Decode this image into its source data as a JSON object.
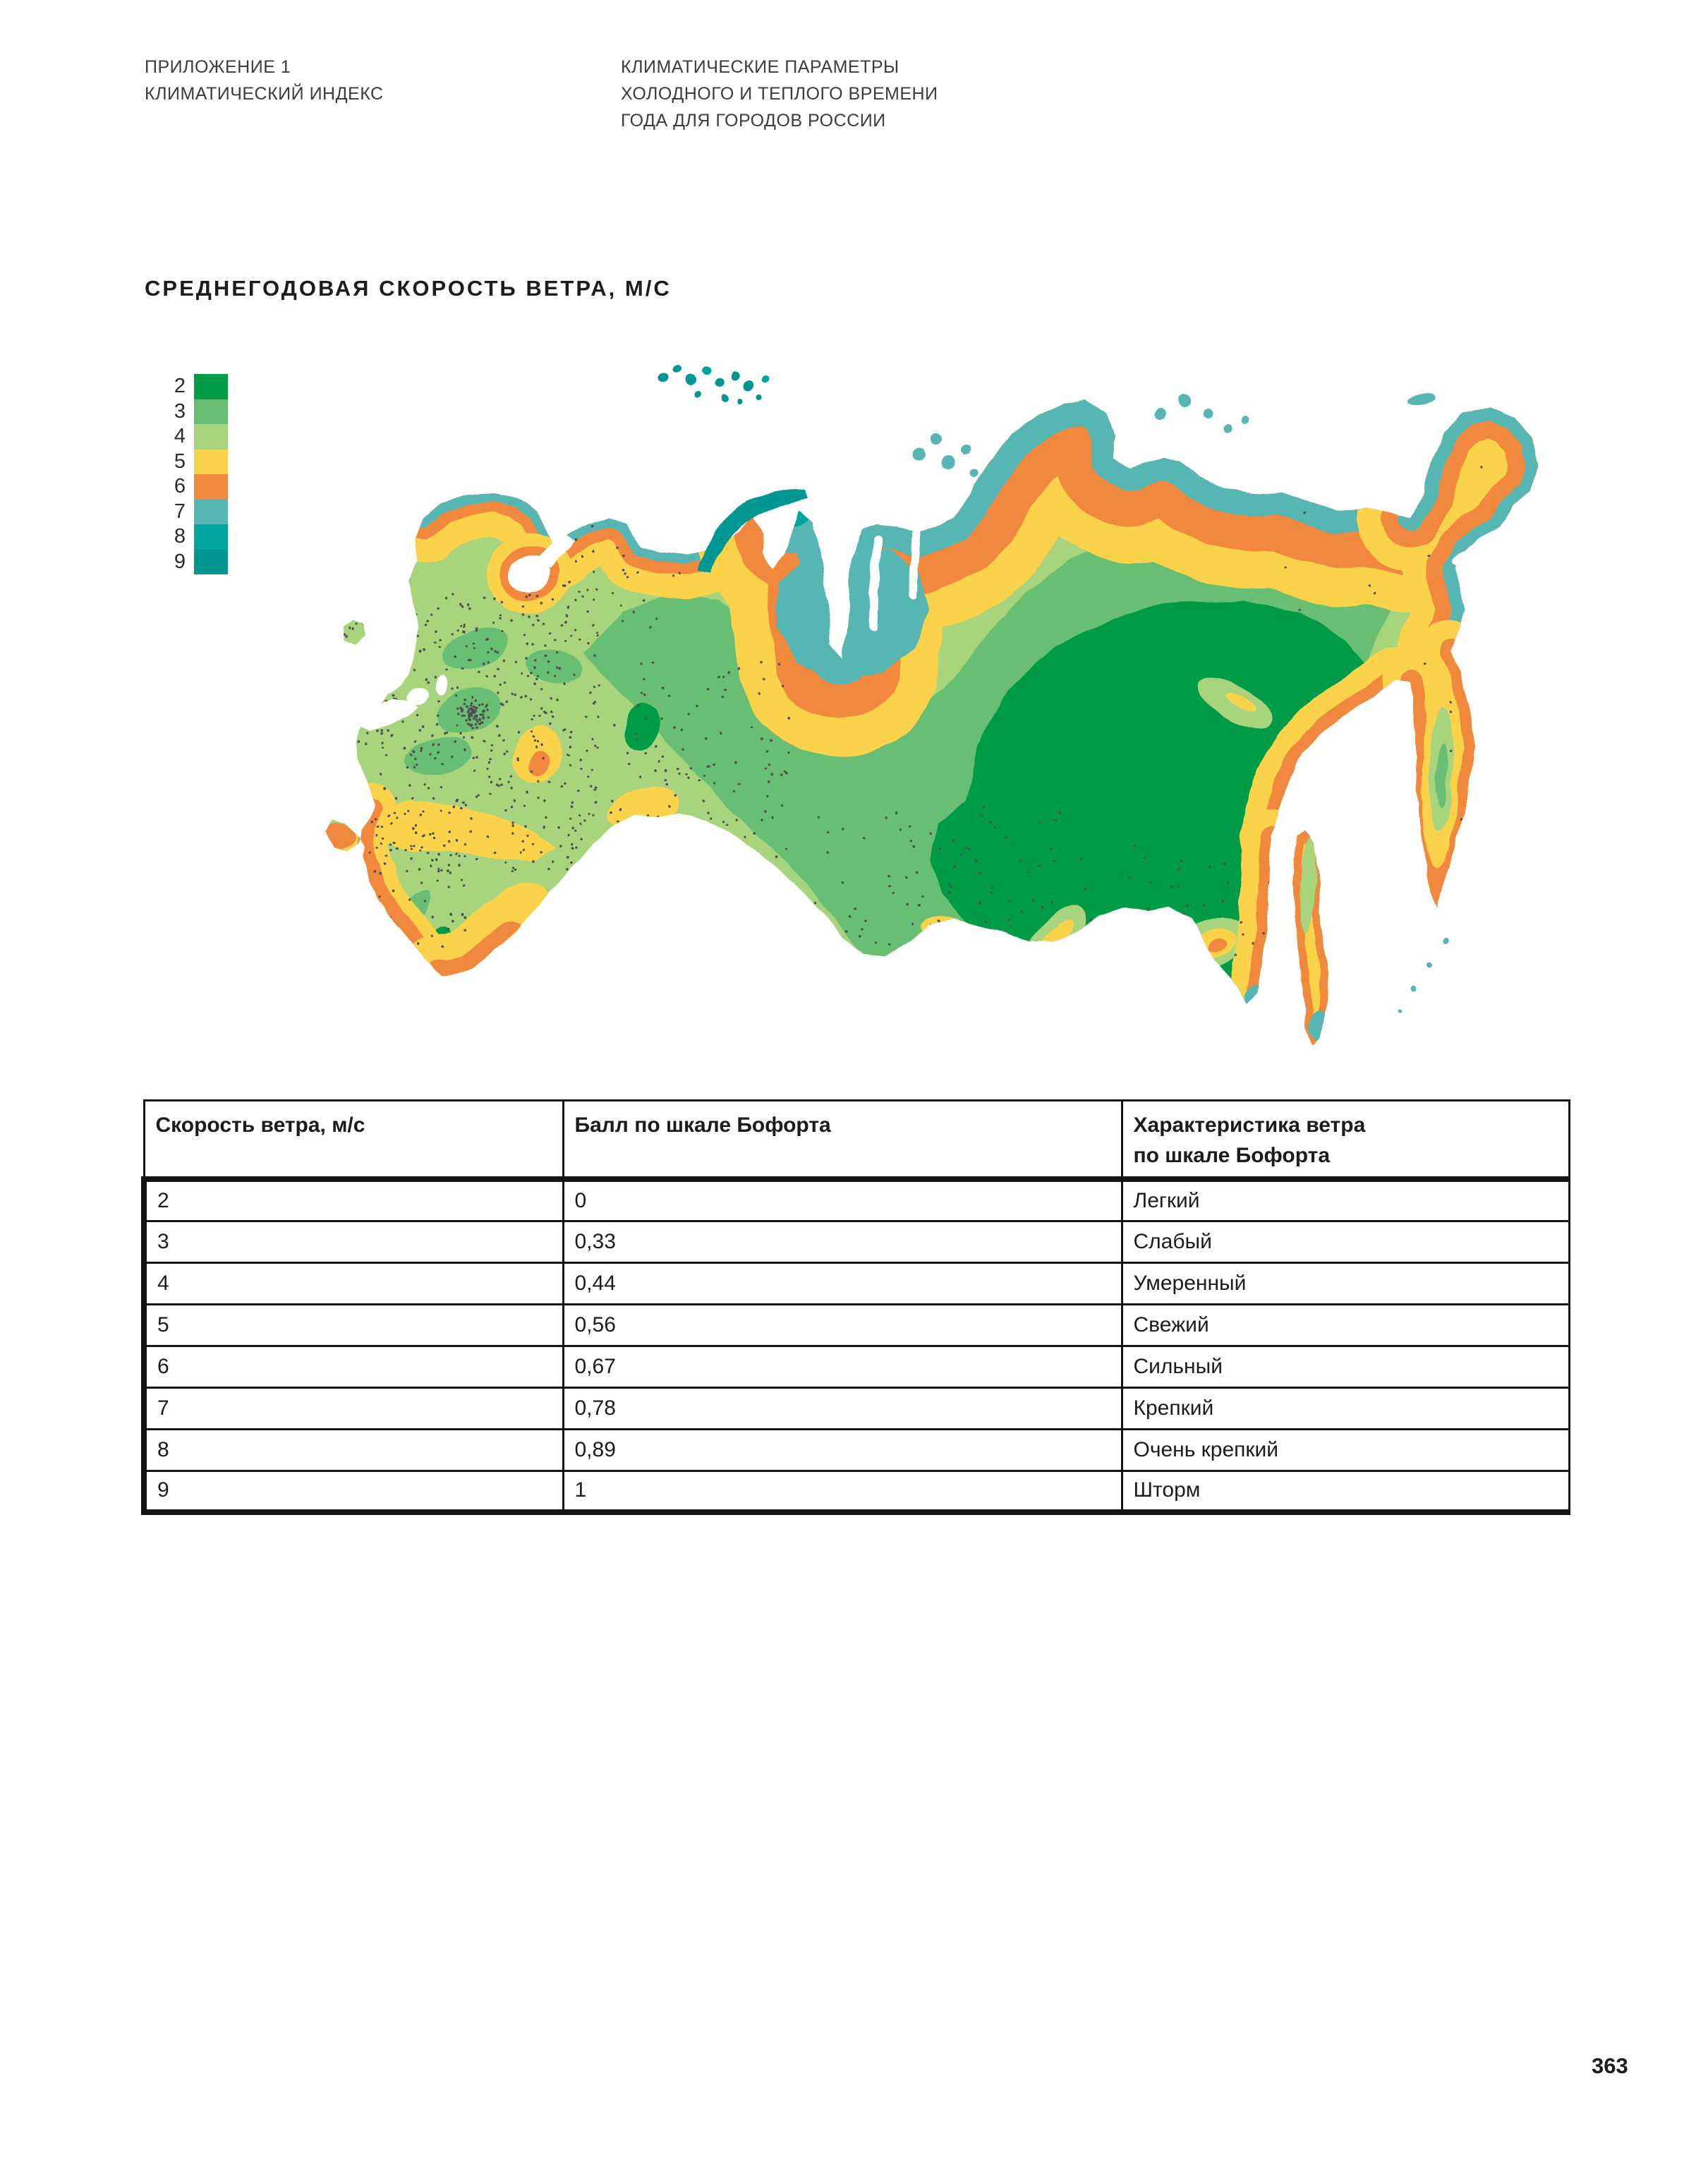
{
  "header": {
    "left_lines": [
      "ПРИЛОЖЕНИЕ 1",
      "КЛИМАТИЧЕСКИЙ ИНДЕКС"
    ],
    "center_lines": [
      "КЛИМАТИЧЕСКИЕ ПАРАМЕТРЫ",
      "ХОЛОДНОГО И ТЕПЛОГО ВРЕМЕНИ",
      "ГОДА ДЛЯ ГОРОДОВ РОССИИ"
    ]
  },
  "map": {
    "title": "СРЕДНЕГОДОВАЯ СКОРОСТЬ ВЕТРА, М/С",
    "legend": [
      {
        "value": "2",
        "color": "#009b46"
      },
      {
        "value": "3",
        "color": "#67be72"
      },
      {
        "value": "4",
        "color": "#a9d47e"
      },
      {
        "value": "5",
        "color": "#fbd34b"
      },
      {
        "value": "6",
        "color": "#f0883d"
      },
      {
        "value": "7",
        "color": "#55b6b3"
      },
      {
        "value": "8",
        "color": "#00a5a0"
      },
      {
        "value": "9",
        "color": "#029691"
      }
    ]
  },
  "table": {
    "columns": [
      [
        "Скорость ветра, м/с"
      ],
      [
        "Балл по шкале Бофорта"
      ],
      [
        "Характеристика ветра",
        "по шкале Бофорта"
      ]
    ],
    "rows": [
      [
        "2",
        "0",
        "Легкий"
      ],
      [
        "3",
        "0,33",
        "Слабый"
      ],
      [
        "4",
        "0,44",
        "Умеренный"
      ],
      [
        "5",
        "0,56",
        "Свежий"
      ],
      [
        "6",
        "0,67",
        "Сильный"
      ],
      [
        "7",
        "0,78",
        "Крепкий"
      ],
      [
        "8",
        "0,89",
        "Очень крепкий"
      ],
      [
        "9",
        "1",
        "Шторм"
      ]
    ]
  },
  "page": {
    "page_number": "363"
  }
}
